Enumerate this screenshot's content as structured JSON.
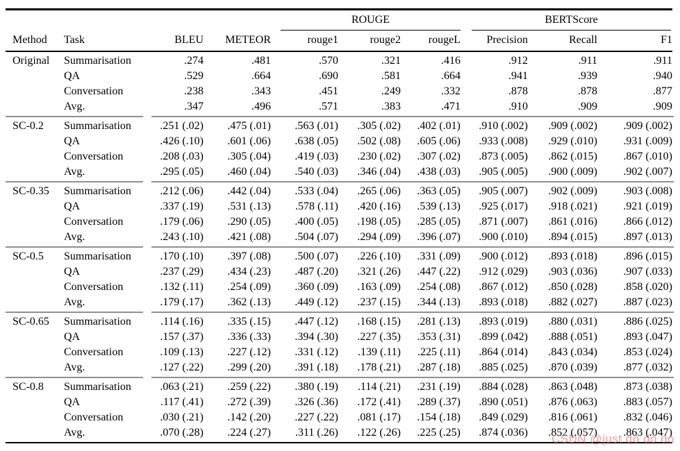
{
  "table": {
    "group_headers": {
      "rouge": "ROUGE",
      "bertscore": "BERTScore"
    },
    "columns": [
      "Method",
      "Task",
      "BLEU",
      "METEOR",
      "rouge1",
      "rouge2",
      "rougeL",
      "Precision",
      "Recall",
      "F1"
    ],
    "groups": [
      {
        "method": "Original",
        "rows": [
          {
            "task": "Summarisation",
            "values": [
              ".274",
              ".481",
              ".570",
              ".321",
              ".416",
              ".912",
              ".911",
              ".911"
            ]
          },
          {
            "task": "QA",
            "values": [
              ".529",
              ".664",
              ".690",
              ".581",
              ".664",
              ".941",
              ".939",
              ".940"
            ]
          },
          {
            "task": "Conversation",
            "values": [
              ".238",
              ".343",
              ".451",
              ".249",
              ".332",
              ".878",
              ".878",
              ".877"
            ]
          },
          {
            "task": "Avg.",
            "values": [
              ".347",
              ".496",
              ".571",
              ".383",
              ".471",
              ".910",
              ".909",
              ".909"
            ]
          }
        ]
      },
      {
        "method": "SC-0.2",
        "rows": [
          {
            "task": "Summarisation",
            "values": [
              ".251 (.02)",
              ".475 (.01)",
              ".563 (.01)",
              ".305 (.02)",
              ".402 (.01)",
              ".910 (.002)",
              ".909 (.002)",
              ".909 (.002)"
            ]
          },
          {
            "task": "QA",
            "values": [
              ".426 (.10)",
              ".601 (.06)",
              ".638 (.05)",
              ".502 (.08)",
              ".605 (.06)",
              ".933 (.008)",
              ".929 (.010)",
              ".931 (.009)"
            ]
          },
          {
            "task": "Conversation",
            "values": [
              ".208 (.03)",
              ".305 (.04)",
              ".419 (.03)",
              ".230 (.02)",
              ".307 (.02)",
              ".873 (.005)",
              ".862 (.015)",
              ".867 (.010)"
            ]
          },
          {
            "task": "Avg.",
            "values": [
              ".295 (.05)",
              ".460 (.04)",
              ".540 (.03)",
              ".346 (.04)",
              ".438 (.03)",
              ".905 (.005)",
              ".900 (.009)",
              ".902 (.007)"
            ]
          }
        ]
      },
      {
        "method": "SC-0.35",
        "rows": [
          {
            "task": "Summarisation",
            "values": [
              ".212 (.06)",
              ".442 (.04)",
              ".533 (.04)",
              ".265 (.06)",
              ".363 (.05)",
              ".905 (.007)",
              ".902 (.009)",
              ".903 (.008)"
            ]
          },
          {
            "task": "QA",
            "values": [
              ".337 (.19)",
              ".531 (.13)",
              ".578 (.11)",
              ".420 (.16)",
              ".539 (.13)",
              ".925 (.017)",
              ".918 (.021)",
              ".921 (.019)"
            ]
          },
          {
            "task": "Conversation",
            "values": [
              ".179 (.06)",
              ".290 (.05)",
              ".400 (.05)",
              ".198 (.05)",
              ".285 (.05)",
              ".871 (.007)",
              ".861 (.016)",
              ".866 (.012)"
            ]
          },
          {
            "task": "Avg.",
            "values": [
              ".243 (.10)",
              ".421 (.08)",
              ".504 (.07)",
              ".294 (.09)",
              ".396 (.07)",
              ".900 (.010)",
              ".894 (.015)",
              ".897 (.013)"
            ]
          }
        ]
      },
      {
        "method": "SC-0.5",
        "rows": [
          {
            "task": "Summarisation",
            "values": [
              ".170 (.10)",
              ".397 (.08)",
              ".500 (.07)",
              ".226 (.10)",
              ".331 (.09)",
              ".900 (.012)",
              ".893 (.018)",
              ".896 (.015)"
            ]
          },
          {
            "task": "QA",
            "values": [
              ".237 (.29)",
              ".434 (.23)",
              ".487 (.20)",
              ".321 (.26)",
              ".447 (.22)",
              ".912 (.029)",
              ".903 (.036)",
              ".907 (.033)"
            ]
          },
          {
            "task": "Conversation",
            "values": [
              ".132 (.11)",
              ".254 (.09)",
              ".360 (.09)",
              ".163 (.09)",
              ".254 (.08)",
              ".867 (.012)",
              ".850 (.028)",
              ".858 (.020)"
            ]
          },
          {
            "task": "Avg.",
            "values": [
              ".179 (.17)",
              ".362 (.13)",
              ".449 (.12)",
              ".237 (.15)",
              ".344 (.13)",
              ".893 (.018)",
              ".882 (.027)",
              ".887 (.023)"
            ]
          }
        ]
      },
      {
        "method": "SC-0.65",
        "rows": [
          {
            "task": "Summarisation",
            "values": [
              ".114 (.16)",
              ".335 (.15)",
              ".447 (.12)",
              ".168 (.15)",
              ".281 (.13)",
              ".893 (.019)",
              ".880 (.031)",
              ".886 (.025)"
            ]
          },
          {
            "task": "QA",
            "values": [
              ".157 (.37)",
              ".336 (.33)",
              ".394 (.30)",
              ".227 (.35)",
              ".353 (.31)",
              ".899 (.042)",
              ".888 (.051)",
              ".893 (.047)"
            ]
          },
          {
            "task": "Conversation",
            "values": [
              ".109 (.13)",
              ".227 (.12)",
              ".331 (.12)",
              ".139 (.11)",
              ".225 (.11)",
              ".864 (.014)",
              ".843 (.034)",
              ".853 (.024)"
            ]
          },
          {
            "task": "Avg.",
            "values": [
              ".127 (.22)",
              ".299 (.20)",
              ".391 (.18)",
              ".178 (.21)",
              ".287 (.18)",
              ".885 (.025)",
              ".870 (.039)",
              ".877 (.032)"
            ]
          }
        ]
      },
      {
        "method": "SC-0.8",
        "rows": [
          {
            "task": "Summarisation",
            "values": [
              ".063 (.21)",
              ".259 (.22)",
              ".380 (.19)",
              ".114 (.21)",
              ".231 (.19)",
              ".884 (.028)",
              ".863 (.048)",
              ".873 (.038)"
            ]
          },
          {
            "task": "QA",
            "values": [
              ".117 (.41)",
              ".272 (.39)",
              ".326 (.36)",
              ".172 (.41)",
              ".289 (.37)",
              ".890 (.051)",
              ".876 (.063)",
              ".883 (.057)"
            ]
          },
          {
            "task": "Conversation",
            "values": [
              ".030 (.21)",
              ".142 (.20)",
              ".227 (.22)",
              ".081 (.17)",
              ".154 (.18)",
              ".849 (.029)",
              ".816 (.061)",
              ".832 (.046)"
            ]
          },
          {
            "task": "Avg.",
            "values": [
              ".070 (.28)",
              ".224 (.27)",
              ".311 (.26)",
              ".122 (.26)",
              ".225 (.25)",
              ".874 (.036)",
              ".852 (.057)",
              ".863 (.047)"
            ]
          }
        ]
      }
    ]
  },
  "watermark": {
    "text": "CSDN @just do do do"
  },
  "colors": {
    "rule_dark": "#000000",
    "group_separator": "#909090",
    "watermark": "#e77474",
    "background": "#ffffff"
  }
}
